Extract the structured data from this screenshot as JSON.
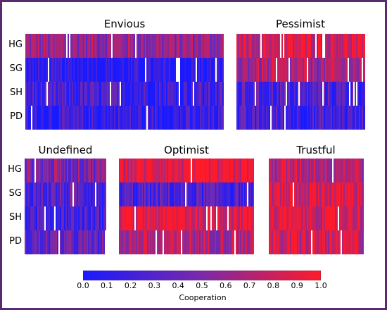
{
  "chart_data": {
    "type": "heatmap",
    "colorbar": {
      "label": "Cooperation",
      "ticks": [
        "0.0",
        "0.1",
        "0.2",
        "0.3",
        "0.4",
        "0.5",
        "0.6",
        "0.7",
        "0.8",
        "0.9",
        "1.0"
      ],
      "range": [
        0,
        1
      ],
      "colors": {
        "low": "#1a1aff",
        "mid": "#7a2aa8",
        "high": "#ff1a2a"
      }
    },
    "row_labels": [
      "HG",
      "SG",
      "SH",
      "PD"
    ],
    "panels": [
      {
        "title": "Envious",
        "mean_cooperation": {
          "HG": 0.6,
          "SG": 0.05,
          "SH": 0.2,
          "PD": 0.12
        }
      },
      {
        "title": "Pessimist",
        "mean_cooperation": {
          "HG": 0.85,
          "SG": 0.65,
          "SH": 0.25,
          "PD": 0.2
        }
      },
      {
        "title": "Undefined",
        "mean_cooperation": {
          "HG": 0.5,
          "SG": 0.3,
          "SH": 0.25,
          "PD": 0.35
        }
      },
      {
        "title": "Optimist",
        "mean_cooperation": {
          "HG": 0.9,
          "SG": 0.25,
          "SH": 0.9,
          "PD": 0.7
        }
      },
      {
        "title": "Trustful",
        "mean_cooperation": {
          "HG": 0.75,
          "SG": 0.85,
          "SH": 0.85,
          "PD": 0.8
        }
      }
    ]
  }
}
